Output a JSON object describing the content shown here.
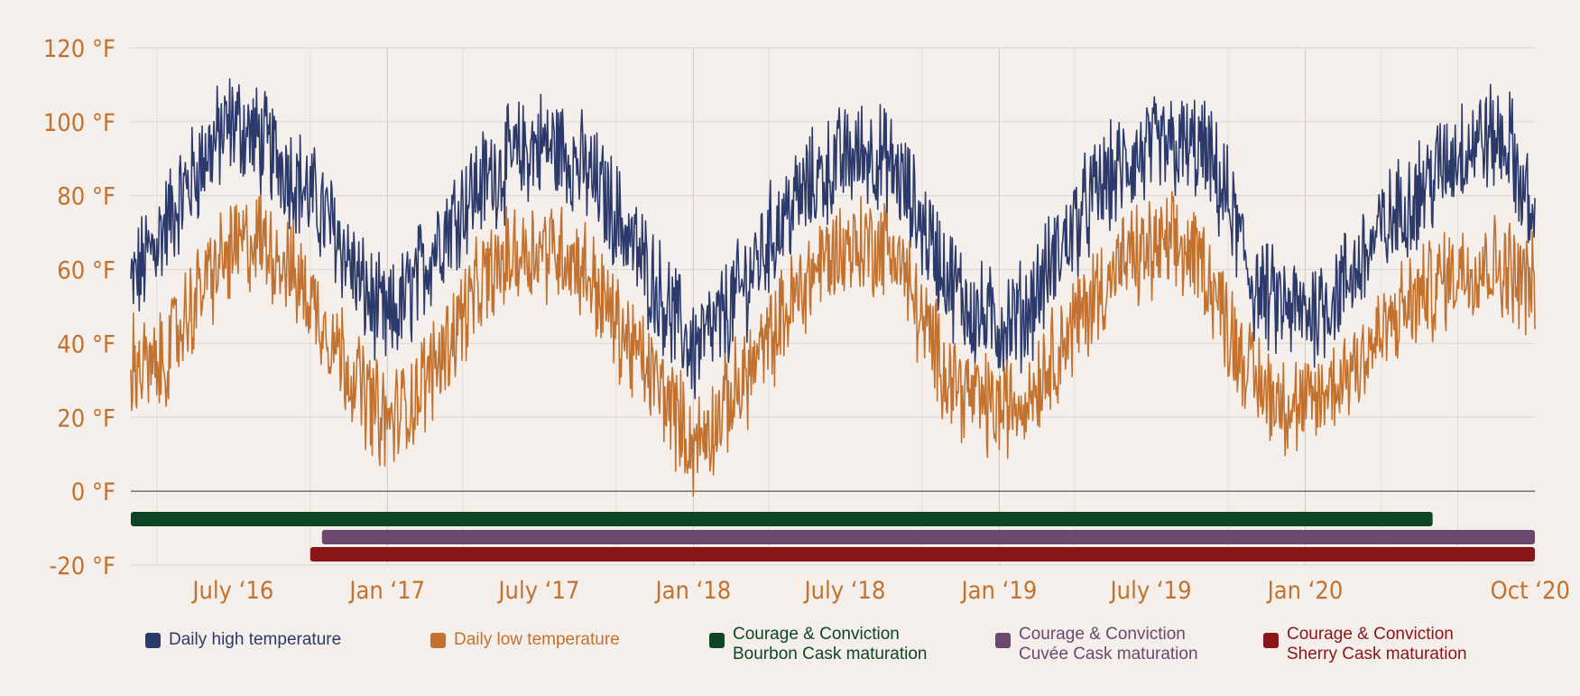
{
  "chart_data": {
    "type": "line",
    "title": "",
    "xlabel": "",
    "ylabel": "",
    "ylim": [
      -20,
      120
    ],
    "x_range": [
      "2016-03-01",
      "2020-10-01"
    ],
    "y_ticks": [
      {
        "value": 120,
        "label": "120 °F"
      },
      {
        "value": 100,
        "label": "100 °F"
      },
      {
        "value": 80,
        "label": "80 °F"
      },
      {
        "value": 60,
        "label": "60 °F"
      },
      {
        "value": 40,
        "label": "40 °F"
      },
      {
        "value": 20,
        "label": "20 °F"
      },
      {
        "value": 0,
        "label": "0 °F"
      },
      {
        "value": -20,
        "label": "-20 °F"
      }
    ],
    "x_ticks": [
      {
        "date": "2016-07-01",
        "label": "July ‘16"
      },
      {
        "date": "2017-01-01",
        "label": "Jan ‘17"
      },
      {
        "date": "2017-07-01",
        "label": "July ‘17"
      },
      {
        "date": "2018-01-01",
        "label": "Jan ‘18"
      },
      {
        "date": "2018-07-01",
        "label": "July ‘18"
      },
      {
        "date": "2019-01-01",
        "label": "Jan ‘19"
      },
      {
        "date": "2019-07-01",
        "label": "July ‘19"
      },
      {
        "date": "2020-01-01",
        "label": "Jan ‘20"
      },
      {
        "date": "2020-10-01",
        "label": "Oct ‘20"
      }
    ],
    "series": [
      {
        "name": "Daily high temperature",
        "color": "#2b3a6b",
        "x": [
          "2016-03-01",
          "2016-04-01",
          "2016-05-01",
          "2016-06-01",
          "2016-07-01",
          "2016-08-01",
          "2016-09-01",
          "2016-10-01",
          "2016-11-01",
          "2016-12-01",
          "2017-01-01",
          "2017-02-01",
          "2017-03-01",
          "2017-04-01",
          "2017-05-01",
          "2017-06-01",
          "2017-07-01",
          "2017-08-01",
          "2017-09-01",
          "2017-10-01",
          "2017-11-01",
          "2017-12-01",
          "2018-01-01",
          "2018-02-01",
          "2018-03-01",
          "2018-04-01",
          "2018-05-01",
          "2018-06-01",
          "2018-07-01",
          "2018-08-01",
          "2018-09-01",
          "2018-10-01",
          "2018-11-01",
          "2018-12-01",
          "2019-01-01",
          "2019-02-01",
          "2019-03-01",
          "2019-04-01",
          "2019-05-01",
          "2019-06-01",
          "2019-07-01",
          "2019-08-01",
          "2019-09-01",
          "2019-10-01",
          "2019-11-01",
          "2019-12-01",
          "2020-01-01",
          "2020-02-01",
          "2020-03-01",
          "2020-04-01",
          "2020-05-01",
          "2020-06-01",
          "2020-07-01",
          "2020-08-01",
          "2020-09-01",
          "2020-10-01"
        ],
        "y": [
          55,
          68,
          80,
          92,
          100,
          95,
          88,
          80,
          70,
          55,
          45,
          55,
          68,
          78,
          85,
          90,
          94,
          92,
          85,
          75,
          62,
          50,
          38,
          45,
          55,
          68,
          78,
          85,
          90,
          92,
          86,
          72,
          58,
          48,
          45,
          48,
          60,
          72,
          82,
          88,
          92,
          93,
          92,
          78,
          55,
          50,
          48,
          52,
          60,
          70,
          78,
          85,
          92,
          96,
          94,
          70
        ]
      },
      {
        "name": "Daily low temperature",
        "color": "#c2722e",
        "x": [
          "2016-03-01",
          "2016-04-01",
          "2016-05-01",
          "2016-06-01",
          "2016-07-01",
          "2016-08-01",
          "2016-09-01",
          "2016-10-01",
          "2016-11-01",
          "2016-12-01",
          "2017-01-01",
          "2017-02-01",
          "2017-03-01",
          "2017-04-01",
          "2017-05-01",
          "2017-06-01",
          "2017-07-01",
          "2017-08-01",
          "2017-09-01",
          "2017-10-01",
          "2017-11-01",
          "2017-12-01",
          "2018-01-01",
          "2018-02-01",
          "2018-03-01",
          "2018-04-01",
          "2018-05-01",
          "2018-06-01",
          "2018-07-01",
          "2018-08-01",
          "2018-09-01",
          "2018-10-01",
          "2018-11-01",
          "2018-12-01",
          "2019-01-01",
          "2019-02-01",
          "2019-03-01",
          "2019-04-01",
          "2019-05-01",
          "2019-06-01",
          "2019-07-01",
          "2019-08-01",
          "2019-09-01",
          "2019-10-01",
          "2019-11-01",
          "2019-12-01",
          "2020-01-01",
          "2020-02-01",
          "2020-03-01",
          "2020-04-01",
          "2020-05-01",
          "2020-06-01",
          "2020-07-01",
          "2020-08-01",
          "2020-09-01",
          "2020-10-01"
        ],
        "y": [
          35,
          32,
          45,
          58,
          65,
          68,
          62,
          52,
          40,
          28,
          18,
          25,
          35,
          48,
          58,
          64,
          66,
          65,
          58,
          45,
          35,
          25,
          12,
          20,
          30,
          40,
          52,
          62,
          66,
          67,
          65,
          45,
          32,
          25,
          22,
          25,
          35,
          45,
          55,
          62,
          65,
          66,
          62,
          45,
          30,
          25,
          22,
          28,
          35,
          42,
          50,
          55,
          60,
          62,
          60,
          55
        ]
      }
    ],
    "ranges": [
      {
        "name": "Courage & Conviction Bourbon Cask maturation",
        "start": "2016-03-01",
        "end": "2020-06-01",
        "color": "#0e4524"
      },
      {
        "name": "Courage & Conviction Cuvée Cask maturation",
        "start": "2016-10-15",
        "end": "2020-10-01",
        "color": "#6c486e"
      },
      {
        "name": "Courage & Conviction Sherry Cask maturation",
        "start": "2016-10-01",
        "end": "2020-10-01",
        "color": "#8a1519"
      }
    ]
  },
  "legend": {
    "high": {
      "label": "Daily high temperature",
      "color": "#2b3a6b"
    },
    "low": {
      "label": "Daily low temperature",
      "color": "#c2722e"
    },
    "bourbon": {
      "line1": "Courage & Conviction",
      "line2": "Bourbon Cask maturation",
      "color": "#0e4524"
    },
    "cuvee": {
      "line1": "Courage & Conviction",
      "line2": "Cuvée Cask maturation",
      "color": "#6c486e"
    },
    "sherry": {
      "line1": "Courage & Conviction",
      "line2": "Sherry Cask maturation",
      "color": "#8a1519"
    }
  }
}
